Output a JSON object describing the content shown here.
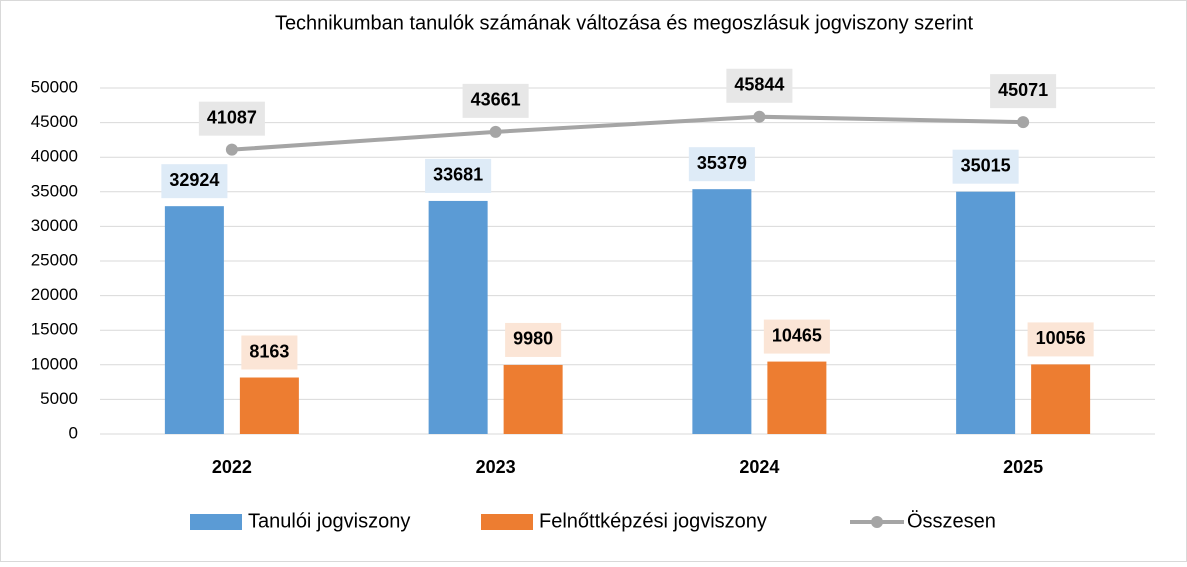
{
  "chart_data": {
    "type": "bar",
    "title": "Technikumban tanulók számának változása és megoszlásuk jogviszony szerint",
    "categories": [
      "2022",
      "2023",
      "2024",
      "2025"
    ],
    "series": [
      {
        "name": "Tanulói jogviszony",
        "color": "#5b9bd5",
        "values": [
          32924,
          33681,
          35379,
          35015
        ]
      },
      {
        "name": "Felnőttképzési jogviszony",
        "color": "#ed7d31",
        "values": [
          8163,
          9980,
          10465,
          10056
        ]
      },
      {
        "name": "Összesen",
        "color": "#a5a5a5",
        "type": "line",
        "values": [
          41087,
          43661,
          45844,
          45071
        ]
      }
    ],
    "ylim": [
      0,
      50000
    ],
    "yticks": [
      0,
      5000,
      10000,
      15000,
      20000,
      25000,
      30000,
      35000,
      40000,
      45000,
      50000
    ],
    "grid": true,
    "legend": "bottom"
  }
}
